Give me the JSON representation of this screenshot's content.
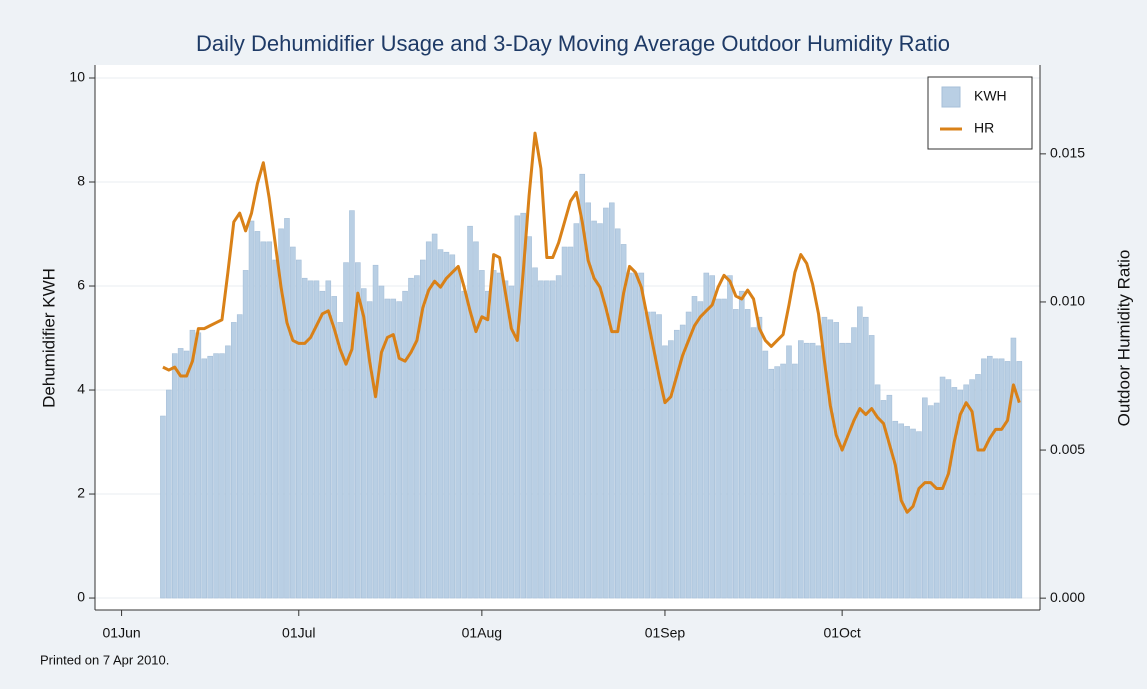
{
  "chart_data": {
    "type": "bar_line",
    "title": "Daily Dehumidifier Usage and 3-Day Moving Average Outdoor Humidity Ratio",
    "ylabel": "Dehumidifier KWH",
    "y2label": "Outdoor Humidity Ratio",
    "note": "Printed on 7 Apr 2010.",
    "x": [
      7,
      8,
      9,
      10,
      11,
      12,
      13,
      14,
      15,
      16,
      17,
      18,
      19,
      20,
      21,
      22,
      23,
      24,
      25,
      26,
      27,
      28,
      29,
      30,
      31,
      32,
      33,
      34,
      35,
      36,
      37,
      38,
      39,
      40,
      41,
      42,
      43,
      44,
      45,
      46,
      47,
      48,
      49,
      50,
      51,
      52,
      53,
      54,
      55,
      56,
      57,
      58,
      59,
      60,
      61,
      62,
      63,
      64,
      65,
      66,
      67,
      68,
      69,
      70,
      71,
      72,
      73,
      74,
      75,
      76,
      77,
      78,
      79,
      80,
      81,
      82,
      83,
      84,
      85,
      86,
      87,
      88,
      89,
      90,
      91,
      92,
      93,
      94,
      95,
      96,
      97,
      98,
      99,
      100,
      101,
      102,
      103,
      104,
      105,
      106,
      107,
      108,
      109,
      110,
      111,
      112,
      113,
      114,
      115,
      116,
      117,
      118,
      119,
      120,
      121,
      122,
      123,
      124,
      125,
      126,
      127,
      128,
      129,
      130,
      131,
      132,
      133,
      134,
      135,
      136,
      137,
      138,
      139,
      140,
      141,
      142,
      143,
      144,
      145,
      146,
      147,
      148,
      149,
      150,
      151,
      152
    ],
    "series": [
      {
        "name": "KWH",
        "kind": "bar",
        "color": "#b9cfe4",
        "values": [
          3.5,
          4.0,
          4.7,
          4.8,
          4.75,
          5.15,
          5.1,
          4.6,
          4.65,
          4.7,
          4.7,
          4.85,
          5.3,
          5.45,
          6.3,
          7.25,
          7.05,
          6.85,
          6.85,
          6.5,
          7.1,
          7.3,
          6.75,
          6.5,
          6.15,
          6.1,
          6.1,
          5.9,
          6.1,
          5.8,
          5.3,
          6.45,
          7.45,
          6.45,
          5.95,
          5.7,
          6.4,
          6.0,
          5.75,
          5.75,
          5.7,
          5.9,
          6.15,
          6.2,
          6.5,
          6.85,
          7.0,
          6.7,
          6.65,
          6.6,
          6.3,
          5.9,
          7.15,
          6.85,
          6.3,
          5.9,
          6.3,
          6.25,
          6.1,
          6.0,
          7.35,
          7.4,
          6.95,
          6.35,
          6.1,
          6.1,
          6.1,
          6.2,
          6.75,
          6.75,
          7.2,
          8.15,
          7.6,
          7.25,
          7.2,
          7.5,
          7.6,
          7.1,
          6.8,
          6.25,
          6.25,
          6.25,
          5.5,
          5.5,
          5.45,
          4.85,
          4.95,
          5.15,
          5.25,
          5.5,
          5.8,
          5.7,
          6.25,
          6.2,
          5.75,
          5.75,
          6.2,
          5.55,
          5.9,
          5.55,
          5.2,
          5.4,
          4.75,
          4.4,
          4.45,
          4.5,
          4.85,
          4.5,
          4.95,
          4.9,
          4.9,
          4.85,
          5.4,
          5.35,
          5.3,
          4.9,
          4.9,
          5.2,
          5.6,
          5.4,
          5.05,
          4.1,
          3.8,
          3.9,
          3.4,
          3.35,
          3.3,
          3.25,
          3.2,
          3.85,
          3.7,
          3.75,
          4.25,
          4.2,
          4.05,
          4.0,
          4.1,
          4.2,
          4.3,
          4.6,
          4.65,
          4.6,
          4.6,
          4.55,
          5.0,
          4.55
        ]
      },
      {
        "name": "HR",
        "kind": "line",
        "axis": "y2",
        "color": "#d98118",
        "values": [
          0.0078,
          0.0077,
          0.0078,
          0.0075,
          0.0075,
          0.008,
          0.0091,
          0.0091,
          0.0092,
          0.0093,
          0.0094,
          0.011,
          0.0127,
          0.013,
          0.0124,
          0.013,
          0.014,
          0.0147,
          0.0135,
          0.012,
          0.0105,
          0.0093,
          0.0087,
          0.0086,
          0.0086,
          0.0088,
          0.0092,
          0.0096,
          0.0097,
          0.0091,
          0.0084,
          0.0079,
          0.0084,
          0.0103,
          0.0095,
          0.008,
          0.0068,
          0.0083,
          0.0088,
          0.0089,
          0.0081,
          0.008,
          0.0083,
          0.0087,
          0.0098,
          0.0104,
          0.0107,
          0.0105,
          0.0108,
          0.011,
          0.0112,
          0.0105,
          0.0097,
          0.009,
          0.0095,
          0.0094,
          0.0116,
          0.0115,
          0.0103,
          0.0091,
          0.0087,
          0.011,
          0.0136,
          0.0157,
          0.0145,
          0.0115,
          0.0115,
          0.012,
          0.0127,
          0.0134,
          0.0137,
          0.0127,
          0.0114,
          0.0108,
          0.0105,
          0.0098,
          0.009,
          0.009,
          0.0103,
          0.0112,
          0.011,
          0.0105,
          0.0095,
          0.0085,
          0.0075,
          0.0066,
          0.0068,
          0.0075,
          0.0082,
          0.0087,
          0.0092,
          0.0095,
          0.0097,
          0.0099,
          0.0105,
          0.0109,
          0.0107,
          0.0102,
          0.0101,
          0.0104,
          0.0101,
          0.0091,
          0.0087,
          0.0085,
          0.0087,
          0.0089,
          0.0099,
          0.011,
          0.0116,
          0.0113,
          0.0106,
          0.0096,
          0.008,
          0.0065,
          0.0055,
          0.005,
          0.0055,
          0.006,
          0.0064,
          0.0062,
          0.0064,
          0.0061,
          0.0059,
          0.0052,
          0.0045,
          0.0033,
          0.0029,
          0.0031,
          0.0037,
          0.0039,
          0.0039,
          0.0037,
          0.0037,
          0.0042,
          0.0053,
          0.0062,
          0.0066,
          0.0063,
          0.005,
          0.005,
          0.0054,
          0.0057,
          0.0057,
          0.006,
          0.0072,
          0.0066
        ]
      }
    ],
    "xlim": [
      -4.5,
      155.5
    ],
    "xticks": [
      {
        "value": 0,
        "label": "01Jun"
      },
      {
        "value": 30,
        "label": "01Jul"
      },
      {
        "value": 61,
        "label": "01Aug"
      },
      {
        "value": 92,
        "label": "01Sep"
      },
      {
        "value": 122,
        "label": "01Oct"
      }
    ],
    "ylim": [
      -0.23,
      10.25
    ],
    "yticks": [
      0,
      2,
      4,
      6,
      8,
      10
    ],
    "y2lim": [
      -0.0004,
      0.018
    ],
    "y2ticks": [
      {
        "value": 0,
        "label": "0.000"
      },
      {
        "value": 0.005,
        "label": "0.005"
      },
      {
        "value": 0.01,
        "label": "0.010"
      },
      {
        "value": 0.015,
        "label": "0.015"
      }
    ],
    "grid": true,
    "legend": "top right"
  }
}
